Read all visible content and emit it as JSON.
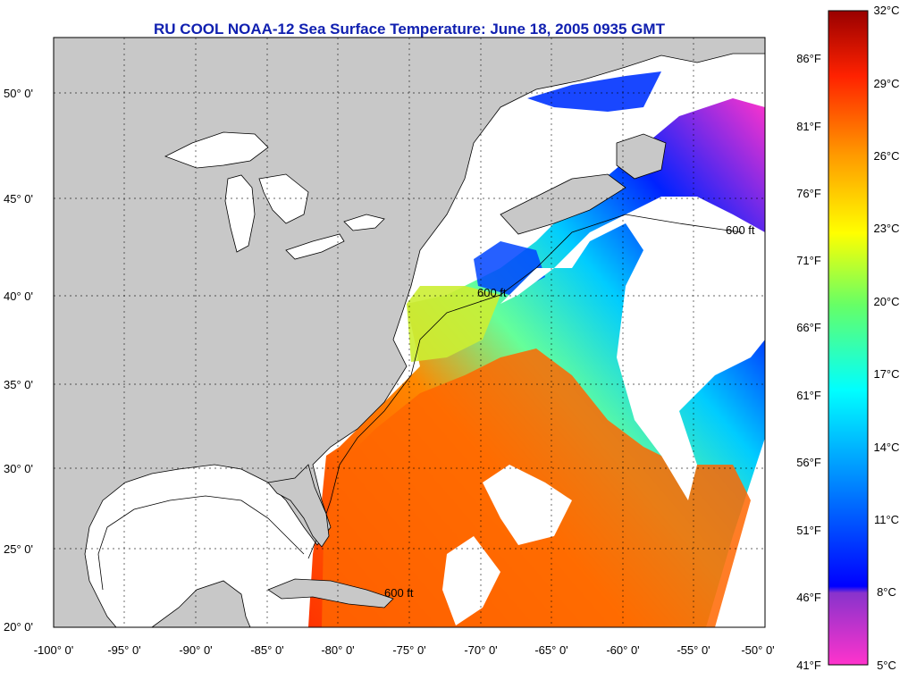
{
  "title": "RU COOL  NOAA-12  Sea Surface Temperature:  June 18, 2005 0935 GMT",
  "lat_labels": [
    "50° 0'",
    "45° 0'",
    "40° 0'",
    "35° 0'",
    "30° 0'",
    "25° 0'",
    "20° 0'"
  ],
  "lon_labels": [
    "-100° 0'",
    "-95° 0'",
    "-90° 0'",
    "-85° 0'",
    "-80° 0'",
    "-75° 0'",
    "-70° 0'",
    "-65° 0'",
    "-60° 0'",
    "-55° 0'",
    "-50° 0'"
  ],
  "fahrenheit_ticks": [
    "86°F",
    "81°F",
    "76°F",
    "71°F",
    "66°F",
    "61°F",
    "56°F",
    "51°F",
    "46°F",
    "41°F"
  ],
  "celsius_ticks": [
    "32°C",
    "29°C",
    "26°C",
    "23°C",
    "20°C",
    "17°C",
    "14°C",
    "11°C",
    "8°C",
    "5°C"
  ],
  "isobath_label": "600 ft",
  "colors": {
    "land": "#c8c8c8",
    "cloud": "#ffffff",
    "title": "#1020b0",
    "colorbar_stops": [
      "#ff33cc",
      "#8833cc",
      "#0000ff",
      "#00aaff",
      "#00ffff",
      "#66ff66",
      "#ffff00",
      "#ff9900",
      "#ff2200",
      "#990000"
    ]
  }
}
